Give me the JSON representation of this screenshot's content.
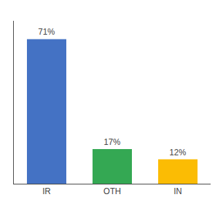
{
  "chart_data": {
    "type": "bar",
    "categories": [
      "IR",
      "OTH",
      "IN"
    ],
    "values": [
      71,
      17,
      12
    ],
    "value_labels": [
      "71%",
      "17%",
      "12%"
    ],
    "data_labels": true,
    "colors": [
      "#4472c4",
      "#34a853",
      "#fbbc04"
    ],
    "ylim": [
      0,
      80
    ],
    "tick_labels": "x",
    "grid": false
  }
}
